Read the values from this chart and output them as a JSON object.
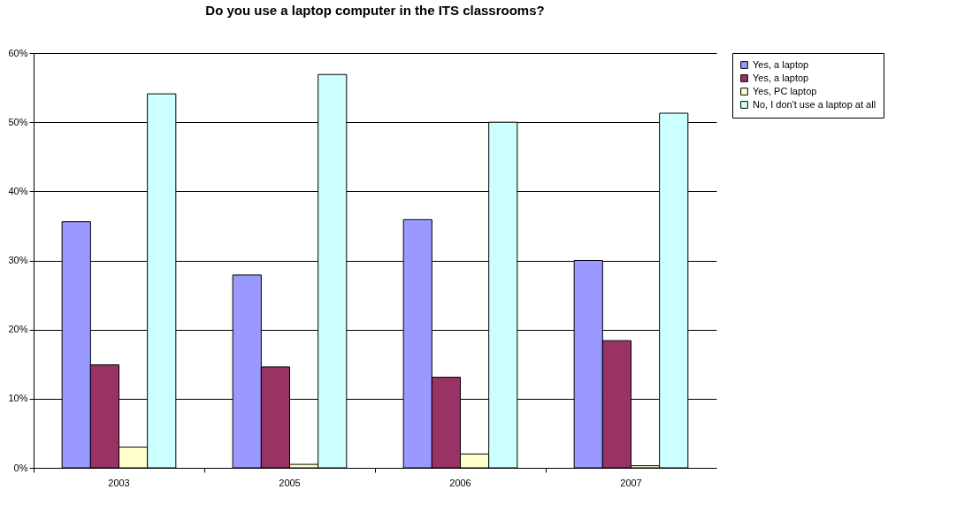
{
  "chart_data": {
    "type": "bar",
    "title": "Do you use a laptop computer in the ITS classrooms?",
    "categories": [
      "2003",
      "2005",
      "2006",
      "2007"
    ],
    "series": [
      {
        "name": "Yes, a laptop",
        "color": "#9999ff",
        "values": [
          35.6,
          27.9,
          35.9,
          30.0
        ]
      },
      {
        "name": "Yes, a laptop",
        "color": "#993366",
        "values": [
          14.9,
          14.6,
          13.1,
          18.4
        ]
      },
      {
        "name": "Yes, PC laptop",
        "color": "#ffffcc",
        "values": [
          3.0,
          0.5,
          2.0,
          0.3
        ]
      },
      {
        "name": "No, I don't use a laptop at all",
        "color": "#ccffff",
        "values": [
          54.1,
          56.9,
          50.0,
          51.3
        ]
      }
    ],
    "ylim": [
      0,
      60
    ],
    "yticks": [
      {
        "value": 0,
        "label": "0%"
      },
      {
        "value": 10,
        "label": "10%"
      },
      {
        "value": 20,
        "label": "20%"
      },
      {
        "value": 30,
        "label": "30%"
      },
      {
        "value": 40,
        "label": "40%"
      },
      {
        "value": 50,
        "label": "50%"
      },
      {
        "value": 60,
        "label": "60%"
      }
    ],
    "grid": "y",
    "legend": "right"
  }
}
